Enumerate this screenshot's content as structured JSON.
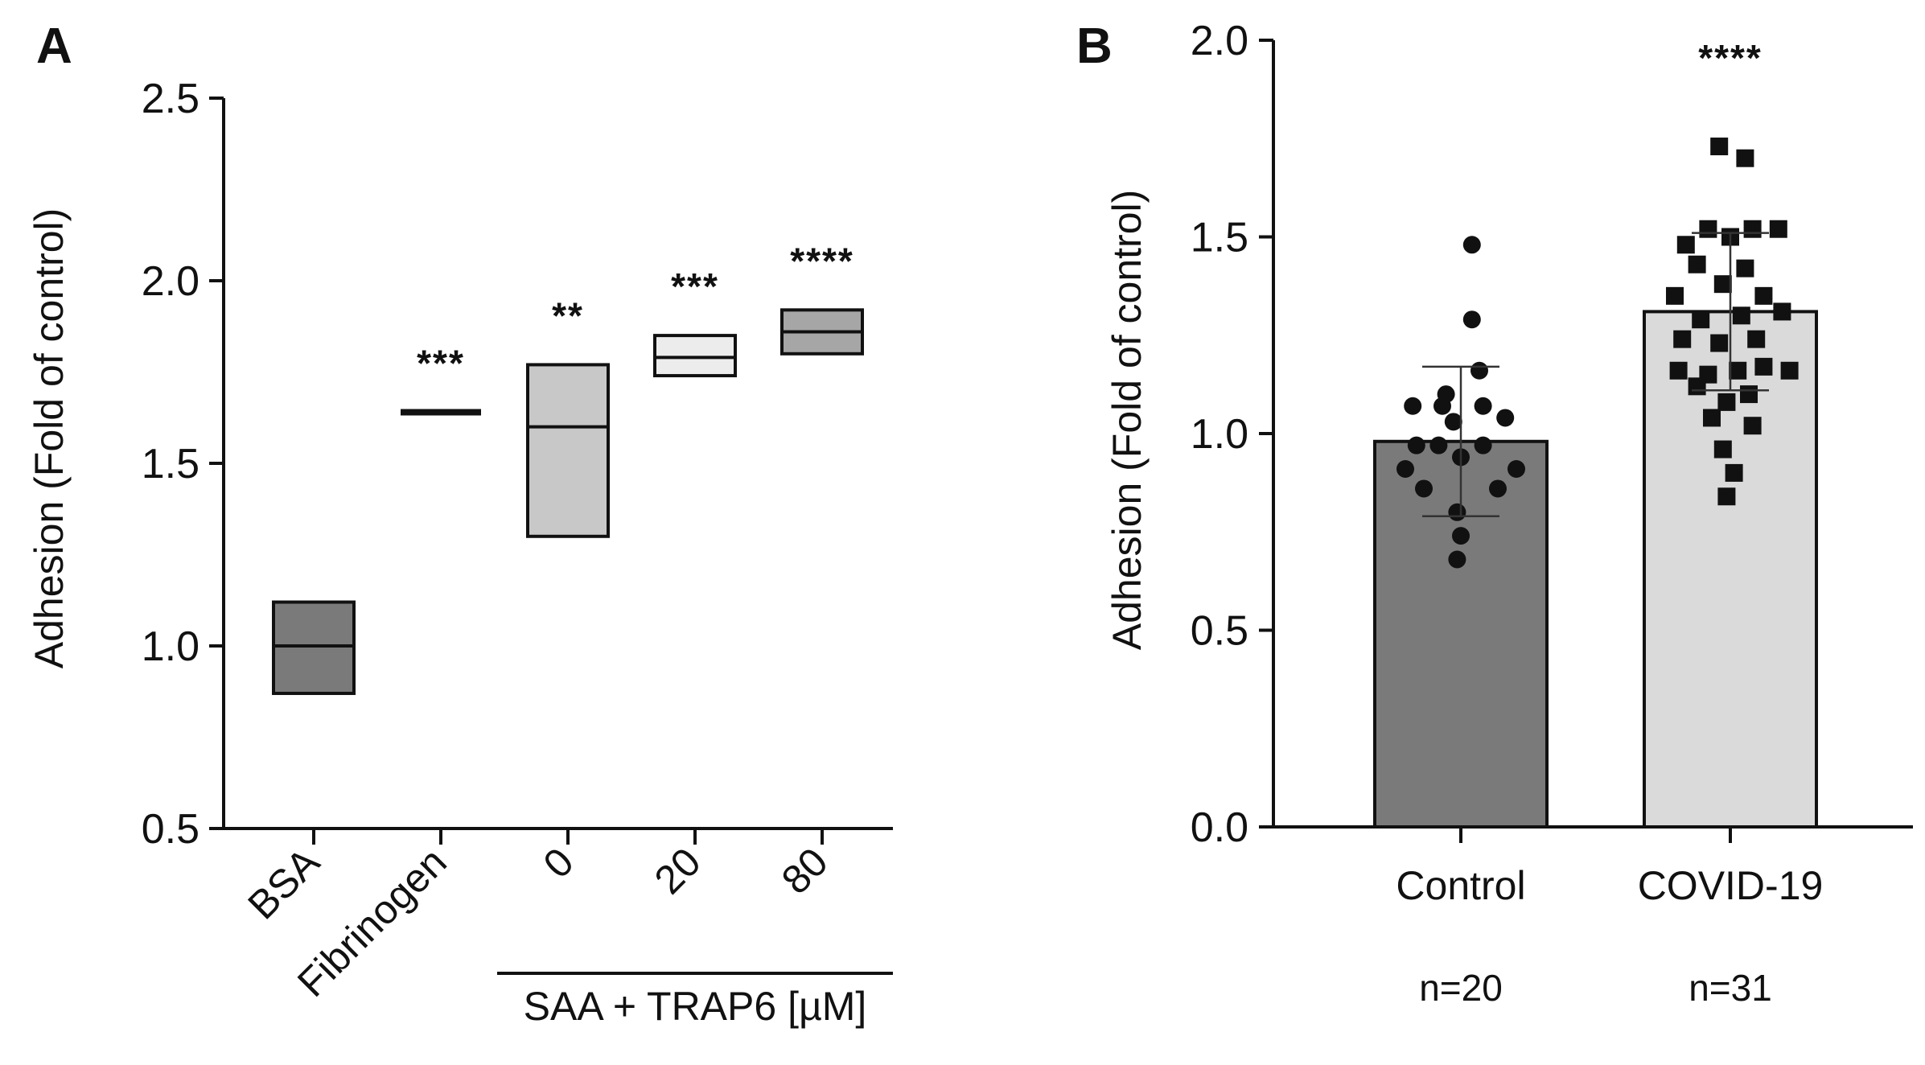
{
  "chart_data": [
    {
      "panel": "A",
      "type": "box",
      "ylabel": "Adhesion (Fold of control)",
      "ylim": [
        0.5,
        2.5
      ],
      "yticks": [
        0.5,
        1.0,
        1.5,
        2.0,
        2.5
      ],
      "ytick_labels": [
        "0.5",
        "1.0",
        "1.5",
        "2.0",
        "2.5"
      ],
      "categories": [
        "BSA",
        "Fibrinogen",
        "0",
        "20",
        "80"
      ],
      "group_label": "SAA + TRAP6 [µM]",
      "groups": [
        {
          "name": "BSA",
          "low": 0.87,
          "median": 1.0,
          "high": 1.12,
          "color": "#7a7a7a",
          "significance": ""
        },
        {
          "name": "Fibrinogen",
          "low": 1.64,
          "median": 1.64,
          "high": 1.64,
          "color": "#111111",
          "significance": "***"
        },
        {
          "name": "0",
          "low": 1.3,
          "median": 1.6,
          "high": 1.77,
          "color": "#c8c8c8",
          "significance": "**"
        },
        {
          "name": "20",
          "low": 1.74,
          "median": 1.79,
          "high": 1.85,
          "color": "#ececec",
          "significance": "***"
        },
        {
          "name": "80",
          "low": 1.8,
          "median": 1.86,
          "high": 1.92,
          "color": "#a6a6a6",
          "significance": "****"
        }
      ]
    },
    {
      "panel": "B",
      "type": "bar",
      "ylabel": "Adhesion (Fold of control)",
      "ylim": [
        0.0,
        2.0
      ],
      "yticks": [
        0.0,
        0.5,
        1.0,
        1.5,
        2.0
      ],
      "ytick_labels": [
        "0.0",
        "0.5",
        "1.0",
        "1.5",
        "2.0"
      ],
      "categories": [
        "Control",
        "COVID-19"
      ],
      "n_labels": [
        "n=20",
        "n=31"
      ],
      "series": [
        {
          "name": "Control",
          "mean": 0.98,
          "sd": 0.19,
          "color": "#7a7a7a",
          "marker": "circle",
          "significance": "",
          "points": [
            {
              "dx": -0.26,
              "y": 1.07
            },
            {
              "dx": -0.1,
              "y": 1.07
            },
            {
              "dx": 0.12,
              "y": 1.07
            },
            {
              "dx": 0.06,
              "y": 1.48
            },
            {
              "dx": 0.06,
              "y": 1.29
            },
            {
              "dx": 0.1,
              "y": 1.16
            },
            {
              "dx": -0.08,
              "y": 1.1
            },
            {
              "dx": 0.24,
              "y": 1.04
            },
            {
              "dx": -0.04,
              "y": 1.03
            },
            {
              "dx": 0.0,
              "y": 0.94
            },
            {
              "dx": -0.24,
              "y": 0.97
            },
            {
              "dx": -0.12,
              "y": 0.97
            },
            {
              "dx": 0.12,
              "y": 0.97
            },
            {
              "dx": -0.3,
              "y": 0.91
            },
            {
              "dx": 0.3,
              "y": 0.91
            },
            {
              "dx": -0.2,
              "y": 0.86
            },
            {
              "dx": 0.2,
              "y": 0.86
            },
            {
              "dx": -0.02,
              "y": 0.8
            },
            {
              "dx": 0.0,
              "y": 0.74
            },
            {
              "dx": -0.02,
              "y": 0.68
            }
          ]
        },
        {
          "name": "COVID-19",
          "mean": 1.31,
          "sd": 0.2,
          "color": "#dadada",
          "marker": "square",
          "significance": "****",
          "points": [
            {
              "dx": -0.06,
              "y": 1.73
            },
            {
              "dx": 0.08,
              "y": 1.7
            },
            {
              "dx": -0.24,
              "y": 1.48
            },
            {
              "dx": -0.12,
              "y": 1.52
            },
            {
              "dx": 0.0,
              "y": 1.5
            },
            {
              "dx": 0.12,
              "y": 1.52
            },
            {
              "dx": 0.26,
              "y": 1.52
            },
            {
              "dx": -0.18,
              "y": 1.43
            },
            {
              "dx": 0.08,
              "y": 1.42
            },
            {
              "dx": -0.3,
              "y": 1.35
            },
            {
              "dx": -0.04,
              "y": 1.38
            },
            {
              "dx": 0.18,
              "y": 1.35
            },
            {
              "dx": -0.16,
              "y": 1.29
            },
            {
              "dx": 0.06,
              "y": 1.3
            },
            {
              "dx": 0.28,
              "y": 1.31
            },
            {
              "dx": -0.26,
              "y": 1.24
            },
            {
              "dx": -0.06,
              "y": 1.23
            },
            {
              "dx": 0.14,
              "y": 1.24
            },
            {
              "dx": -0.28,
              "y": 1.16
            },
            {
              "dx": -0.12,
              "y": 1.15
            },
            {
              "dx": 0.04,
              "y": 1.16
            },
            {
              "dx": 0.18,
              "y": 1.17
            },
            {
              "dx": 0.32,
              "y": 1.16
            },
            {
              "dx": -0.18,
              "y": 1.12
            },
            {
              "dx": 0.1,
              "y": 1.1
            },
            {
              "dx": -0.02,
              "y": 1.08
            },
            {
              "dx": -0.1,
              "y": 1.04
            },
            {
              "dx": 0.12,
              "y": 1.02
            },
            {
              "dx": -0.04,
              "y": 0.96
            },
            {
              "dx": 0.02,
              "y": 0.9
            },
            {
              "dx": -0.02,
              "y": 0.84
            }
          ]
        }
      ]
    }
  ]
}
